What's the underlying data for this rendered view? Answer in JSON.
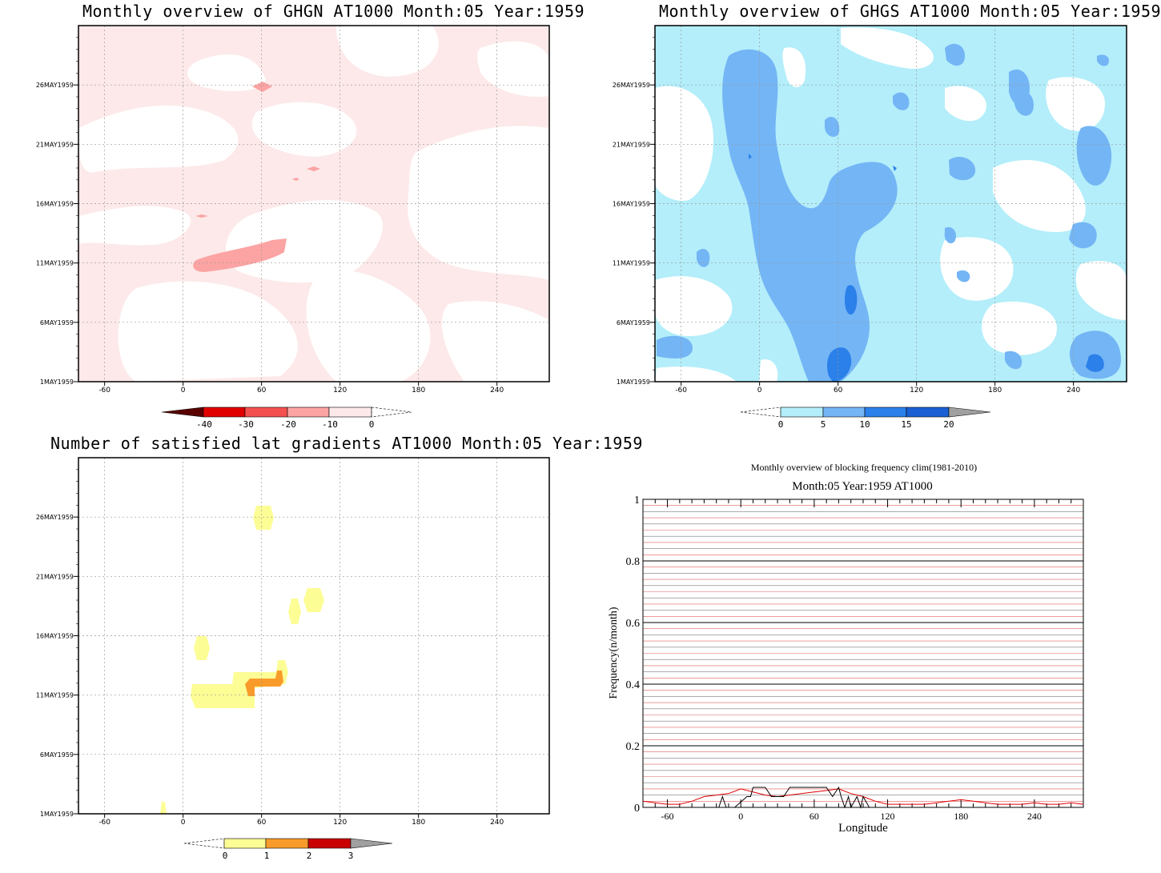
{
  "colors": {
    "ghgn_light": "#fde9e9",
    "ghgn_mid": "#fca3a3",
    "ghgs_light": "#b3eefa",
    "ghgs_mid": "#74b5f5",
    "ghgs_dark": "#2b80ea",
    "gradient_yellow": "#fdfd96",
    "gradient_orange": "#f99b2a",
    "freq_red": "#e00000",
    "freq_black": "#000000"
  },
  "panels": {
    "ghgn": {
      "title": "Monthly overview of GHGN AT1000 Month:05 Year:1959",
      "y_ticks": [
        "26MAY1959",
        "21MAY1959",
        "16MAY1959",
        "11MAY1959",
        "6MAY1959",
        "1MAY1959"
      ],
      "x_ticks": [
        "-60",
        "0",
        "60",
        "120",
        "180",
        "240"
      ],
      "colorbar": [
        "-40",
        "-30",
        "-20",
        "-10",
        "0"
      ]
    },
    "ghgs": {
      "title": "Monthly overview of GHGS AT1000 Month:05 Year:1959",
      "y_ticks": [
        "26MAY1959",
        "21MAY1959",
        "16MAY1959",
        "11MAY1959",
        "6MAY1959",
        "1MAY1959"
      ],
      "x_ticks": [
        "-60",
        "0",
        "60",
        "120",
        "180",
        "240"
      ],
      "colorbar": [
        "0",
        "5",
        "10",
        "15",
        "20"
      ]
    },
    "grad": {
      "title": "Number of satisfied lat gradients AT1000 Month:05 Year:1959",
      "y_ticks": [
        "26MAY1959",
        "21MAY1959",
        "16MAY1959",
        "11MAY1959",
        "6MAY1959",
        "1MAY1959"
      ],
      "x_ticks": [
        "-60",
        "0",
        "60",
        "120",
        "180",
        "240"
      ],
      "colorbar": [
        "0",
        "1",
        "2",
        "3"
      ]
    },
    "freq": {
      "title": "Monthly overview of blocking frequency clim(1981-2010)",
      "subtitle": "Month:05 Year:1959  AT1000",
      "ylabel": "Frequency(n/month)",
      "xlabel": "Longitude",
      "y_ticks": [
        "0",
        "0.2",
        "0.4",
        "0.6",
        "0.8",
        "1"
      ],
      "x_ticks": [
        "-60",
        "0",
        "60",
        "120",
        "180",
        "240"
      ]
    }
  },
  "chart_data": [
    {
      "type": "heatmap",
      "title": "Monthly overview of GHGN AT1000 Month:05 Year:1959",
      "x_range": [
        -80,
        280
      ],
      "y_categories": [
        "1MAY1959",
        "6MAY1959",
        "11MAY1959",
        "16MAY1959",
        "21MAY1959",
        "26MAY1959"
      ],
      "levels": [
        -40,
        -30,
        -20,
        -10,
        0
      ]
    },
    {
      "type": "heatmap",
      "title": "Monthly overview of GHGS AT1000 Month:05 Year:1959",
      "x_range": [
        -80,
        280
      ],
      "y_categories": [
        "1MAY1959",
        "6MAY1959",
        "11MAY1959",
        "16MAY1959",
        "21MAY1959",
        "26MAY1959"
      ],
      "levels": [
        0,
        5,
        10,
        15,
        20
      ]
    },
    {
      "type": "heatmap",
      "title": "Number of satisfied lat gradients AT1000 Month:05 Year:1959",
      "x_range": [
        -80,
        280
      ],
      "y_categories": [
        "1MAY1959",
        "6MAY1959",
        "11MAY1959",
        "16MAY1959",
        "21MAY1959",
        "26MAY1959"
      ],
      "levels": [
        0,
        1,
        2,
        3
      ]
    },
    {
      "type": "line",
      "title": "Monthly overview of blocking frequency clim(1981-2010)",
      "subtitle": "Month:05 Year:1959  AT1000",
      "xlabel": "Longitude",
      "ylabel": "Frequency(n/month)",
      "xlim": [
        -80,
        280
      ],
      "ylim": [
        0,
        1
      ],
      "series": [
        {
          "color": "#e00000",
          "x": [
            -80,
            -70,
            -60,
            -50,
            -40,
            -30,
            -20,
            -10,
            0,
            5,
            10,
            20,
            30,
            40,
            50,
            60,
            70,
            80,
            90,
            100,
            110,
            120,
            130,
            140,
            150,
            160,
            170,
            180,
            190,
            200,
            210,
            220,
            230,
            240,
            250,
            260,
            270,
            280
          ],
          "y": [
            0.02,
            0.015,
            0.01,
            0.01,
            0.02,
            0.035,
            0.04,
            0.045,
            0.06,
            0.055,
            0.05,
            0.04,
            0.035,
            0.04,
            0.045,
            0.05,
            0.055,
            0.06,
            0.045,
            0.035,
            0.02,
            0.01,
            0.01,
            0.01,
            0.01,
            0.015,
            0.02,
            0.025,
            0.02,
            0.015,
            0.01,
            0.01,
            0.01,
            0.015,
            0.01,
            0.01,
            0.015,
            0.01
          ]
        },
        {
          "color": "#000000",
          "x": [
            -80,
            -18,
            -15,
            -12,
            -5,
            5,
            8,
            10,
            20,
            25,
            30,
            35,
            40,
            45,
            50,
            55,
            60,
            65,
            70,
            75,
            80,
            82,
            85,
            88,
            90,
            95,
            98,
            100,
            105,
            280
          ],
          "y": [
            0,
            0,
            0.035,
            0,
            0,
            0.035,
            0.035,
            0.065,
            0.065,
            0.035,
            0.035,
            0.035,
            0.065,
            0.065,
            0.065,
            0.065,
            0.065,
            0.065,
            0.065,
            0.035,
            0.065,
            0.035,
            0,
            0.035,
            0,
            0.035,
            0,
            0.035,
            0,
            0
          ]
        }
      ]
    }
  ]
}
